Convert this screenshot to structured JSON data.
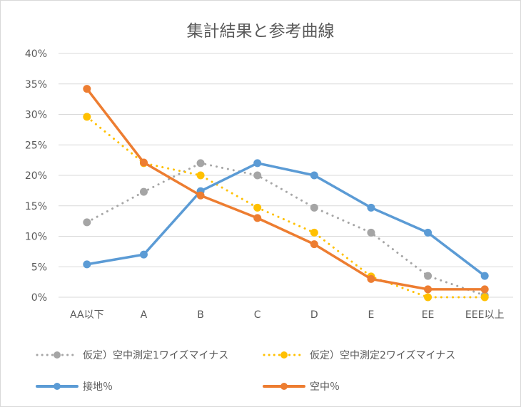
{
  "chart_data": {
    "type": "line",
    "title": "集計結果と参考曲線",
    "categories": [
      "AA以下",
      "A",
      "B",
      "C",
      "D",
      "E",
      "EE",
      "EEE以上"
    ],
    "ylim": [
      0,
      40
    ],
    "yticks": [
      "0%",
      "5%",
      "10%",
      "15%",
      "20%",
      "25%",
      "30%",
      "35%",
      "40%"
    ],
    "grid": true,
    "legend_position": "bottom",
    "series": [
      {
        "name": "仮定）空中測定1ワイズマイナス",
        "values": [
          12.3,
          17.3,
          22.0,
          20.0,
          14.7,
          10.6,
          3.5,
          0.3
        ],
        "color": "#a5a5a5",
        "style": "dotted"
      },
      {
        "name": "仮定）空中測定2ワイズマイナス",
        "values": [
          29.6,
          22.0,
          20.0,
          14.7,
          10.6,
          3.4,
          0.0,
          0.0
        ],
        "color": "#ffc000",
        "style": "dotted"
      },
      {
        "name": "接地％",
        "values": [
          5.4,
          7.0,
          17.4,
          22.0,
          20.0,
          14.7,
          10.6,
          3.5
        ],
        "color": "#5b9bd5",
        "style": "solid"
      },
      {
        "name": "空中％",
        "values": [
          34.2,
          22.1,
          16.7,
          13.0,
          8.7,
          3.0,
          1.3,
          1.3
        ],
        "color": "#ed7d31",
        "style": "solid"
      }
    ]
  }
}
